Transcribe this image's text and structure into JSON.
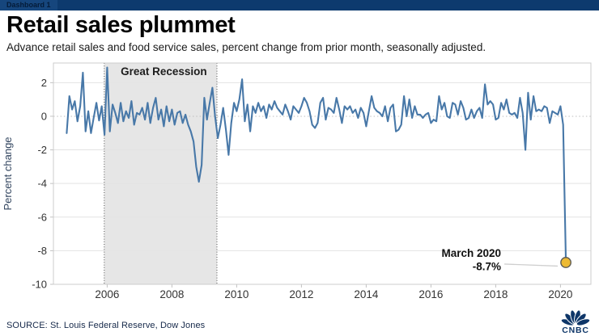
{
  "window": {
    "tab_label": "Dashboard 1"
  },
  "header": {
    "title": "Retail sales plummet",
    "subtitle": "Advance retail sales and food service sales, percent change from prior month, seasonally adjusted."
  },
  "footer": {
    "source": "SOURCE: St. Louis Federal Reserve, Dow Jones",
    "logo_text": "CNBC"
  },
  "colors": {
    "brand_navy": "#0d3a6e",
    "line": "#4878a8",
    "dot_fill": "#edba33",
    "dot_stroke": "#5f5d55",
    "band_fill": "#e6e6e6",
    "grid": "#e3e3e3",
    "zero_line": "#bdbdbd",
    "plot_border": "#cccccc",
    "axis_text": "#333333",
    "connector": "#cfcfcf"
  },
  "chart_data": {
    "type": "line",
    "title": "Retail sales plummet",
    "ylabel": "Percent change",
    "xlabel": "",
    "grid": "horizontal",
    "x_ticks": [
      "2006",
      "2008",
      "2010",
      "2012",
      "2014",
      "2016",
      "2018",
      "2020"
    ],
    "y_ticks": [
      2,
      0,
      -2,
      -4,
      -6,
      -8,
      -10
    ],
    "x_range_years": [
      2004.34,
      2020.94
    ],
    "y_range": [
      -10.0,
      3.17
    ],
    "recession_band": {
      "label": "Great Recession",
      "start_year": 2005.91,
      "end_year": 2009.39
    },
    "annotation": {
      "title": "March 2020",
      "value_label": "-8.7%",
      "value": -8.7
    },
    "series": [
      {
        "name": "Percent change from prior month",
        "start_year": 2004.75,
        "interval_years": 0.0833333,
        "values": [
          -1.0,
          1.2,
          0.4,
          0.9,
          -0.3,
          0.6,
          2.6,
          -0.9,
          0.3,
          -1.0,
          -0.1,
          0.8,
          -0.25,
          0.6,
          -1.1,
          2.9,
          -0.9,
          0.7,
          0.2,
          -0.4,
          0.8,
          -0.3,
          0.3,
          -0.1,
          0.9,
          -0.5,
          0.2,
          0.1,
          0.5,
          -0.2,
          0.8,
          -0.4,
          0.5,
          1.1,
          -0.2,
          0.4,
          -0.6,
          0.6,
          -0.3,
          0.4,
          -0.5,
          0.2,
          0.3,
          -0.4,
          0.1,
          -0.5,
          -0.9,
          -1.5,
          -3.0,
          -3.9,
          -2.9,
          1.1,
          -0.2,
          0.8,
          1.7,
          0.0,
          -1.3,
          -0.5,
          0.5,
          -0.8,
          -2.3,
          -0.4,
          0.8,
          0.3,
          1.0,
          2.2,
          -0.3,
          0.7,
          -0.9,
          0.6,
          0.2,
          0.8,
          0.3,
          0.6,
          -0.1,
          0.7,
          0.4,
          0.9,
          0.5,
          0.3,
          0.1,
          0.7,
          0.3,
          -0.2,
          0.6,
          0.4,
          0.2,
          0.6,
          1.1,
          0.8,
          0.3,
          -0.5,
          -0.7,
          -0.4,
          0.8,
          1.1,
          -0.2,
          0.5,
          0.4,
          0.2,
          1.1,
          0.4,
          -0.4,
          0.6,
          0.4,
          0.6,
          0.2,
          0.4,
          -0.1,
          0.5,
          0.2,
          -0.6,
          0.3,
          1.2,
          0.5,
          0.3,
          0.2,
          0.0,
          0.6,
          -0.3,
          0.5,
          0.7,
          -0.9,
          -0.8,
          -0.5,
          1.2,
          0.0,
          1.0,
          -0.1,
          0.6,
          0.1,
          0.1,
          -0.1,
          0.1,
          0.2,
          -0.4,
          -0.2,
          -0.3,
          1.2,
          0.4,
          0.8,
          0.0,
          -0.1,
          0.8,
          0.7,
          0.1,
          0.9,
          0.5,
          -0.2,
          -0.1,
          0.4,
          -0.1,
          0.3,
          0.5,
          -0.1,
          1.9,
          0.7,
          0.9,
          0.7,
          -0.2,
          -0.1,
          0.8,
          0.4,
          1.0,
          0.2,
          0.1,
          0.2,
          -0.1,
          1.1,
          0.2,
          -2.0,
          1.4,
          -0.2,
          1.2,
          0.3,
          0.4,
          0.3,
          0.6,
          0.5,
          -0.4,
          0.3,
          0.2,
          0.1,
          0.6,
          -0.5,
          -8.7
        ]
      }
    ]
  }
}
